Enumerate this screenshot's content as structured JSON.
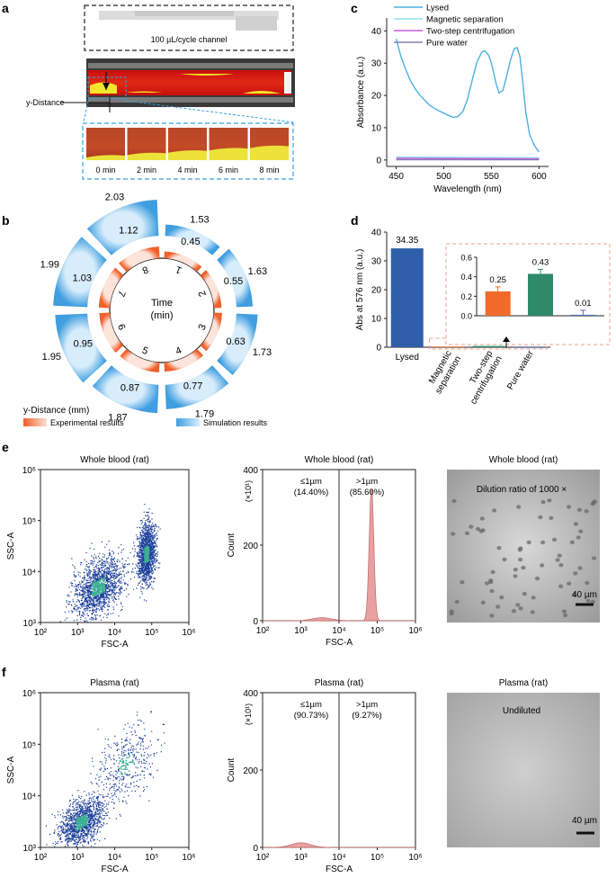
{
  "panel_labels": {
    "a": "a",
    "b": "b",
    "c": "c",
    "d": "d",
    "e": "e",
    "f": "f"
  },
  "panel_a": {
    "channel_label": "100 µL/cycle channel",
    "y_distance_label": "y-Distance",
    "time_labels": [
      "0 min",
      "2 min",
      "4 min",
      "6 min",
      "8 min"
    ]
  },
  "panel_b": {
    "center_label_1": "Time",
    "center_label_2": "(min)",
    "legend_title": "y-Distance (mm)",
    "legend_experimental": "Experimental results",
    "legend_simulation": "Simulation results",
    "segments": [
      {
        "time": "1",
        "experimental": "0.45",
        "simulation": "1.53"
      },
      {
        "time": "2",
        "experimental": "0.55",
        "simulation": "1.63"
      },
      {
        "time": "3",
        "experimental": "0.63",
        "simulation": "1.73"
      },
      {
        "time": "4",
        "experimental": "0.77",
        "simulation": "1.79"
      },
      {
        "time": "5",
        "experimental": "0.87",
        "simulation": "1.87"
      },
      {
        "time": "6",
        "experimental": "0.95",
        "simulation": "1.95"
      },
      {
        "time": "7",
        "experimental": "1.03",
        "simulation": "1.99"
      },
      {
        "time": "8",
        "experimental": "1.12",
        "simulation": "2.03"
      }
    ]
  },
  "colors": {
    "lysed": "#4fb0e0",
    "magnetic": "#8fe0f0",
    "two_step": "#c65be0",
    "water": "#8a7fb5",
    "bar_lysed": "#2f5fa8",
    "bar_magnetic": "#f26a2a",
    "bar_two_step": "#2f8a6a",
    "bar_water": "#4a6fb5",
    "exp_orange": "#f0602a",
    "sim_blue": "#5aaee6",
    "hist": "#e8a0a0"
  },
  "chart_data": [
    {
      "id": "c",
      "type": "line",
      "xlabel": "Wavelength (nm)",
      "ylabel": "Absorbance (a.u.)",
      "xlim": [
        440,
        610
      ],
      "ylim": [
        -2,
        44
      ],
      "xticks": [
        "450",
        "500",
        "550",
        "600"
      ],
      "yticks": [
        "0",
        "10",
        "20",
        "30",
        "40"
      ],
      "series": [
        {
          "name": "Lysed",
          "x": [
            450,
            455,
            460,
            465,
            470,
            475,
            480,
            485,
            490,
            495,
            500,
            505,
            510,
            515,
            520,
            525,
            530,
            535,
            540,
            543,
            547,
            550,
            555,
            558,
            562,
            566,
            570,
            574,
            577,
            580,
            583,
            586,
            590,
            595,
            600
          ],
          "y": [
            37.5,
            32,
            28,
            24.5,
            22,
            20,
            18.5,
            17,
            16,
            15.2,
            14.5,
            13.8,
            13.2,
            13.5,
            15,
            19,
            25,
            30.5,
            33.5,
            33.8,
            32.5,
            30,
            23.5,
            20.8,
            21.5,
            26,
            31,
            34.5,
            34.8,
            32,
            24,
            15,
            8,
            4.5,
            2.5
          ]
        },
        {
          "name": "Magnetic separation",
          "x": [
            450,
            600
          ],
          "y": [
            0.9,
            0.7
          ]
        },
        {
          "name": "Two-step centrifugation",
          "x": [
            450,
            600
          ],
          "y": [
            0.5,
            0.35
          ]
        },
        {
          "name": "Pure water",
          "x": [
            450,
            600
          ],
          "y": [
            0.1,
            0.05
          ]
        }
      ]
    },
    {
      "id": "d",
      "type": "bar",
      "ylabel": "Abs at 576 nm (a.u.)",
      "ylim": [
        0,
        40
      ],
      "yticks": [
        "0",
        "10",
        "20",
        "30",
        "40"
      ],
      "categories": [
        "Lysed",
        "Magnetic separation",
        "Two-step centrifugation",
        "Pure water"
      ],
      "category_lines": [
        [
          "Lysed"
        ],
        [
          "Magnetic",
          "separation"
        ],
        [
          "Two-step",
          "centrifugation"
        ],
        [
          "Pure water"
        ]
      ],
      "values": [
        34.35,
        0.25,
        0.43,
        0.01
      ],
      "labels": [
        "34.35",
        "0.25",
        "0.43",
        "0.01"
      ],
      "inset": {
        "ylim": [
          0,
          0.6
        ],
        "yticks": [
          "0.0",
          "0.2",
          "0.4",
          "0.6"
        ],
        "categories": [
          "Magnetic separation",
          "Two-step centrifugation",
          "Pure water"
        ],
        "values": [
          0.25,
          0.43,
          0.01
        ],
        "labels": [
          "0.25",
          "0.43",
          "0.01"
        ]
      }
    },
    {
      "id": "e-scatter",
      "type": "scatter",
      "title": "Whole blood (rat)",
      "xlabel": "FSC-A",
      "ylabel": "SSC-A",
      "xlim_log": [
        2,
        6
      ],
      "ylim_log": [
        3,
        6
      ],
      "xticks": [
        "10²",
        "10³",
        "10⁴",
        "10⁵",
        "10⁶"
      ],
      "yticks": [
        "10³",
        "10⁴",
        "10⁵",
        "10⁶"
      ],
      "clusters": [
        {
          "cx": 3.55,
          "cy": 3.7,
          "sx": 0.35,
          "sy": 0.28,
          "n": 1500
        },
        {
          "cx": 4.85,
          "cy": 4.35,
          "sx": 0.12,
          "sy": 0.3,
          "n": 1300
        }
      ]
    },
    {
      "id": "e-hist",
      "type": "area",
      "title": "Whole blood (rat)",
      "xlabel": "FSC-A",
      "ylabel": "Count",
      "ylabel_unit": "(×10¹)",
      "xlim_log": [
        2,
        6
      ],
      "ylim": [
        0,
        400
      ],
      "xticks": [
        "10²",
        "10³",
        "10⁴",
        "10⁵",
        "10⁶"
      ],
      "yticks": [
        "0",
        "200",
        "400"
      ],
      "gate_log": 4,
      "left_label": "≤1µm",
      "left_pct": "(14.40%)",
      "right_label": ">1µm",
      "right_pct": "(85.60%)",
      "peaks": [
        {
          "mu": 3.55,
          "sigma": 0.25,
          "h": 8
        },
        {
          "mu": 4.85,
          "sigma": 0.06,
          "h": 350
        }
      ]
    },
    {
      "id": "f-scatter",
      "type": "scatter",
      "title": "Plasma (rat)",
      "xlabel": "FSC-A",
      "ylabel": "SSC-A",
      "xlim_log": [
        2,
        6
      ],
      "ylim_log": [
        3,
        6
      ],
      "xticks": [
        "10²",
        "10³",
        "10⁴",
        "10⁵",
        "10⁶"
      ],
      "yticks": [
        "10³",
        "10⁴",
        "10⁵",
        "10⁶"
      ],
      "clusters": [
        {
          "cx": 3.1,
          "cy": 3.5,
          "sx": 0.3,
          "sy": 0.22,
          "n": 1300
        },
        {
          "cx": 4.3,
          "cy": 4.6,
          "sx": 0.4,
          "sy": 0.35,
          "n": 400
        }
      ]
    },
    {
      "id": "f-hist",
      "type": "area",
      "title": "Plasma (rat)",
      "xlabel": "FSC-A",
      "ylabel": "Count",
      "ylabel_unit": "(×10¹)",
      "xlim_log": [
        2,
        6
      ],
      "ylim": [
        0,
        400
      ],
      "xticks": [
        "10²",
        "10³",
        "10⁴",
        "10⁵",
        "10⁶"
      ],
      "yticks": [
        "0",
        "200",
        "400"
      ],
      "gate_log": 4,
      "left_label": "≤1µm",
      "left_pct": "(90.73%)",
      "right_label": ">1µm",
      "right_pct": "(9.27%)",
      "peaks": [
        {
          "mu": 3.0,
          "sigma": 0.25,
          "h": 12
        }
      ]
    }
  ],
  "micrographs": {
    "e": {
      "title": "Whole blood (rat)",
      "note": "Dilution ratio of 1000 ×",
      "scale": "40 µm"
    },
    "f": {
      "title": "Plasma (rat)",
      "note": "Undiluted",
      "scale": "40 µm"
    }
  }
}
